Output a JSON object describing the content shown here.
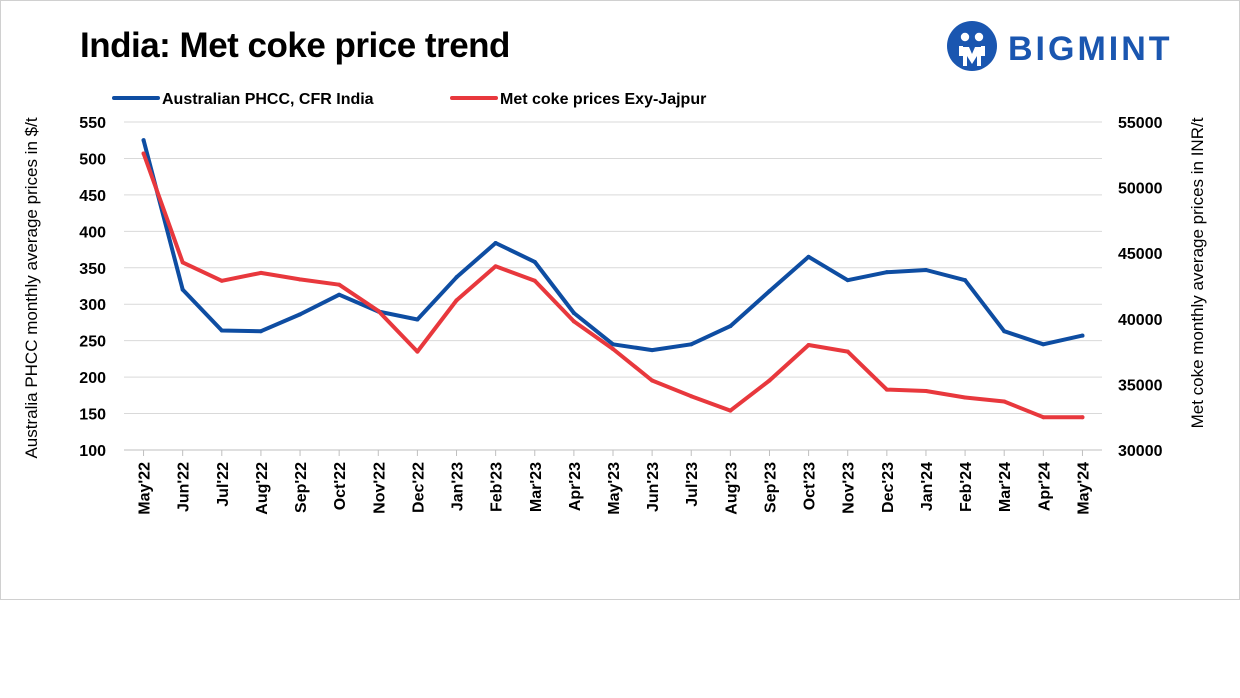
{
  "header": {
    "title": "India: Met coke price trend",
    "brand_name": "BIGMINT"
  },
  "colors": {
    "brand": "#1a56b0",
    "series_blue": "#0e4da2",
    "series_red": "#e8383d"
  },
  "icons": {
    "logo": "bigmint-logo-icon"
  },
  "chart_data": {
    "type": "line",
    "title": "India: Met coke price trend",
    "categories": [
      "May'22",
      "Jun'22",
      "Jul'22",
      "Aug'22",
      "Sep'22",
      "Oct'22",
      "Nov'22",
      "Dec'22",
      "Jan'23",
      "Feb'23",
      "Mar'23",
      "Apr'23",
      "May'23",
      "Jun'23",
      "Jul'23",
      "Aug'23",
      "Sep'23",
      "Oct'23",
      "Nov'23",
      "Dec'23",
      "Jan'24",
      "Feb'24",
      "Mar'24",
      "Apr'24",
      "May'24"
    ],
    "ylabel": "Australia PHCC monthly average prices in $/t",
    "y2label": "Met coke monthly average prices in INR/t",
    "ylim": [
      100,
      550
    ],
    "y2lim": [
      30000,
      55000
    ],
    "yticks": [
      100,
      150,
      200,
      250,
      300,
      350,
      400,
      450,
      500,
      550
    ],
    "y2ticks": [
      30000,
      35000,
      40000,
      45000,
      50000,
      55000
    ],
    "grid": true,
    "legend_position": "top",
    "series": [
      {
        "name": "Australian PHCC, CFR India",
        "axis": "left",
        "color": "#0e4da2",
        "values": [
          525,
          320,
          264,
          263,
          286,
          313,
          290,
          279,
          337,
          384,
          358,
          288,
          245,
          237,
          245,
          270,
          318,
          365,
          333,
          344,
          347,
          333,
          263,
          245,
          257
        ]
      },
      {
        "name": "Met coke prices Exy-Jajpur",
        "axis": "right",
        "color": "#e8383d",
        "values": [
          52600,
          44300,
          42900,
          43500,
          43000,
          42600,
          40600,
          37500,
          41400,
          44000,
          42900,
          39800,
          37700,
          35300,
          34100,
          33000,
          35300,
          38000,
          37500,
          34600,
          34500,
          34000,
          33700,
          32500,
          32500
        ]
      }
    ]
  }
}
